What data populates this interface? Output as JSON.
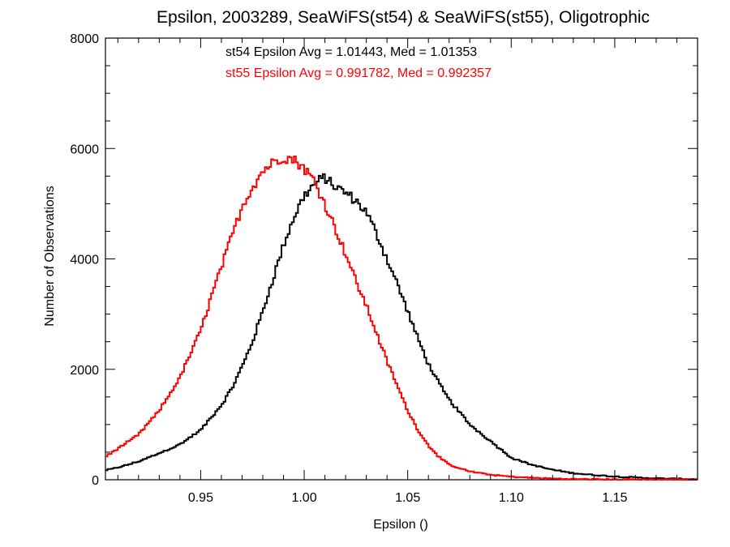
{
  "chart_data": {
    "type": "line",
    "style": "step-histogram",
    "title": "Epsilon, 2003289, SeaWiFS(st54) & SeaWiFS(st55), Oligotrophic",
    "xlabel": "Epsilon ()",
    "ylabel": "Number of Observations",
    "xlim": [
      0.904,
      1.19
    ],
    "ylim": [
      0,
      8000
    ],
    "x_ticks": [
      0.95,
      1.0,
      1.05,
      1.1,
      1.15
    ],
    "x_tick_labels": [
      "0.95",
      "1.00",
      "1.05",
      "1.10",
      "1.15"
    ],
    "y_ticks": [
      0,
      2000,
      4000,
      6000,
      8000
    ],
    "y_tick_labels": [
      "0",
      "2000",
      "4000",
      "6000",
      "8000"
    ],
    "grid": false,
    "annotations": [
      {
        "text": "st54 Epsilon Avg = 1.01443, Med = 1.01353",
        "color": "#000000"
      },
      {
        "text": "st55 Epsilon Avg = 0.991782, Med = 0.992357",
        "color": "#ff0000"
      }
    ],
    "series": [
      {
        "color": "#000000",
        "points": [
          [
            0.904,
            170
          ],
          [
            0.91,
            220
          ],
          [
            0.92,
            330
          ],
          [
            0.93,
            480
          ],
          [
            0.94,
            640
          ],
          [
            0.95,
            900
          ],
          [
            0.96,
            1350
          ],
          [
            0.965,
            1650
          ],
          [
            0.97,
            2050
          ],
          [
            0.975,
            2500
          ],
          [
            0.98,
            3050
          ],
          [
            0.985,
            3650
          ],
          [
            0.99,
            4250
          ],
          [
            0.995,
            4750
          ],
          [
            1.0,
            5150
          ],
          [
            1.005,
            5350
          ],
          [
            1.01,
            5480
          ],
          [
            1.015,
            5300
          ],
          [
            1.02,
            5200
          ],
          [
            1.025,
            5050
          ],
          [
            1.03,
            4850
          ],
          [
            1.035,
            4450
          ],
          [
            1.04,
            4000
          ],
          [
            1.045,
            3550
          ],
          [
            1.05,
            3050
          ],
          [
            1.055,
            2550
          ],
          [
            1.06,
            2100
          ],
          [
            1.065,
            1750
          ],
          [
            1.07,
            1450
          ],
          [
            1.08,
            1000
          ],
          [
            1.09,
            700
          ],
          [
            1.1,
            400
          ],
          [
            1.11,
            270
          ],
          [
            1.12,
            180
          ],
          [
            1.13,
            120
          ],
          [
            1.14,
            85
          ],
          [
            1.15,
            60
          ],
          [
            1.16,
            40
          ],
          [
            1.17,
            25
          ],
          [
            1.18,
            15
          ],
          [
            1.19,
            10
          ]
        ]
      },
      {
        "color": "#ff0000",
        "points": [
          [
            0.904,
            420
          ],
          [
            0.91,
            560
          ],
          [
            0.92,
            820
          ],
          [
            0.93,
            1250
          ],
          [
            0.94,
            1850
          ],
          [
            0.95,
            2700
          ],
          [
            0.955,
            3300
          ],
          [
            0.96,
            3850
          ],
          [
            0.965,
            4400
          ],
          [
            0.97,
            4950
          ],
          [
            0.975,
            5300
          ],
          [
            0.98,
            5600
          ],
          [
            0.985,
            5750
          ],
          [
            0.99,
            5850
          ],
          [
            0.995,
            5800
          ],
          [
            1.0,
            5650
          ],
          [
            1.005,
            5400
          ],
          [
            1.01,
            5000
          ],
          [
            1.015,
            4550
          ],
          [
            1.02,
            4100
          ],
          [
            1.025,
            3600
          ],
          [
            1.03,
            3150
          ],
          [
            1.035,
            2650
          ],
          [
            1.04,
            2150
          ],
          [
            1.045,
            1700
          ],
          [
            1.05,
            1250
          ],
          [
            1.055,
            900
          ],
          [
            1.06,
            620
          ],
          [
            1.065,
            420
          ],
          [
            1.07,
            270
          ],
          [
            1.08,
            150
          ],
          [
            1.09,
            90
          ],
          [
            1.1,
            55
          ],
          [
            1.11,
            35
          ],
          [
            1.12,
            20
          ],
          [
            1.13,
            12
          ],
          [
            1.15,
            6
          ],
          [
            1.17,
            3
          ],
          [
            1.19,
            2
          ]
        ]
      }
    ]
  }
}
